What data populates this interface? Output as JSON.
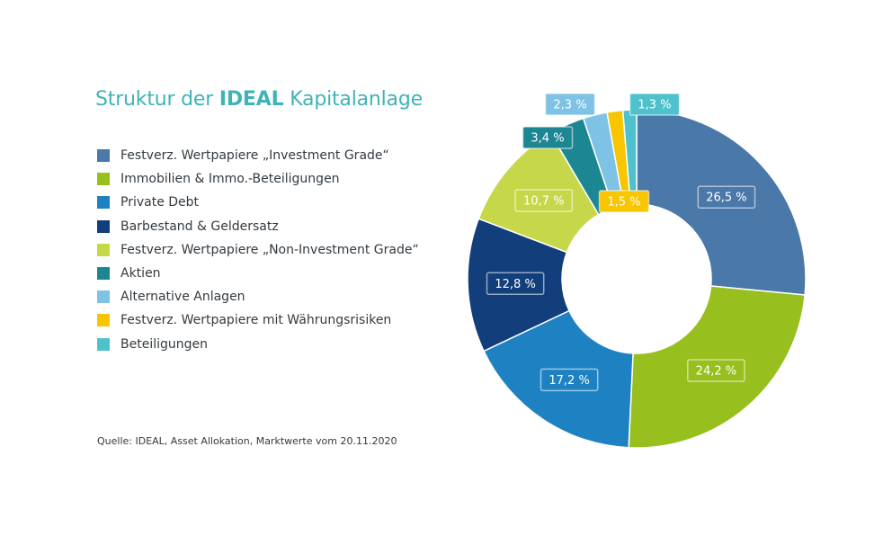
{
  "chart_data": {
    "type": "pie",
    "title_prefix": "Struktur der ",
    "title_emphasis": "IDEAL",
    "title_suffix": " Kapitalanlage",
    "categories": [
      "Festverz. Wertpapiere „Investment Grade“",
      "Immobilien & Immo.-Beteiligungen",
      "Private Debt",
      "Barbestand & Geldersatz",
      "Festverz. Wertpapiere „Non-Investment Grade“",
      "Aktien",
      "Alternative Anlagen",
      "Festverz. Wertpapiere mit Währungsrisiken",
      "Beteiligungen"
    ],
    "values": [
      26.5,
      24.2,
      17.2,
      12.8,
      10.7,
      3.4,
      2.3,
      1.5,
      1.3
    ],
    "value_labels": [
      "26,5 %",
      "24,2 %",
      "17,2 %",
      "12,8 %",
      "10,7 %",
      "3,4 %",
      "2,3 %",
      "1,5 %",
      "1,3 %"
    ],
    "colors": [
      "#4a78a8",
      "#97bf1e",
      "#1e82c2",
      "#123f7c",
      "#c6d84a",
      "#1d8693",
      "#7ec2e6",
      "#f8c600",
      "#4ec1cc"
    ],
    "donut": true,
    "legend_position": "left",
    "source": "Quelle: IDEAL, Asset Allokation, Marktwerte vom 20.11.2020"
  }
}
